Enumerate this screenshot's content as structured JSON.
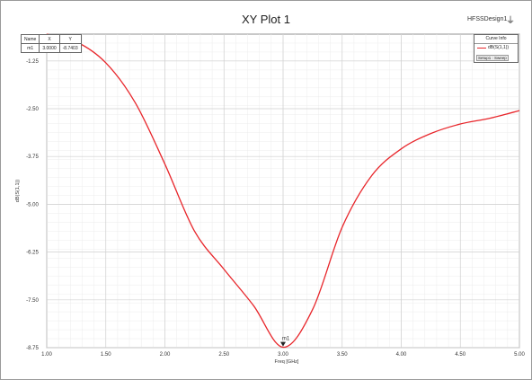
{
  "title": "XY Plot 1",
  "design_name": "HFSSDesign1",
  "design_icon": "hfss-logo-icon",
  "marker_table": {
    "headers": [
      "Name",
      "X",
      "Y"
    ],
    "row": [
      "m1",
      "3.0000",
      "-8.7403"
    ]
  },
  "legend": {
    "header": "Curve Info",
    "entries": [
      {
        "label": "dB(S(1,1))"
      }
    ],
    "setup_label": "Setup1 : Sweep"
  },
  "marker_label": "m1",
  "chart_data": {
    "type": "line",
    "title": "XY Plot 1",
    "xlabel": "Freq [GHz]",
    "ylabel": "dB(S(1,1))",
    "xlim": [
      1.0,
      5.0
    ],
    "ylim": [
      -8.75,
      -0.55
    ],
    "x_ticks": [
      "1.00",
      "1.50",
      "2.00",
      "2.50",
      "3.00",
      "3.50",
      "4.00",
      "4.50",
      "5.00"
    ],
    "y_ticks": [
      "-1.25",
      "-2.50",
      "-3.75",
      "-5.00",
      "-6.25",
      "-7.50",
      "-8.75"
    ],
    "y_tick_values": [
      -1.25,
      -2.5,
      -3.75,
      -5.0,
      -6.25,
      -7.5,
      -8.75
    ],
    "grid": true,
    "line_color": "#e8262b",
    "series": [
      {
        "name": "dB(S(1,1))",
        "x": [
          1.0,
          1.25,
          1.5,
          1.75,
          2.0,
          2.25,
          2.5,
          2.75,
          3.0,
          3.25,
          3.5,
          3.75,
          4.0,
          4.25,
          4.5,
          4.75,
          5.0
        ],
        "y": [
          -0.55,
          -0.75,
          -1.3,
          -2.35,
          -3.95,
          -5.7,
          -6.7,
          -7.65,
          -8.74,
          -7.75,
          -5.6,
          -4.25,
          -3.55,
          -3.15,
          -2.9,
          -2.75,
          -2.55
        ]
      }
    ],
    "markers": [
      {
        "name": "m1",
        "x": 3.0,
        "y": -8.7403
      }
    ]
  }
}
